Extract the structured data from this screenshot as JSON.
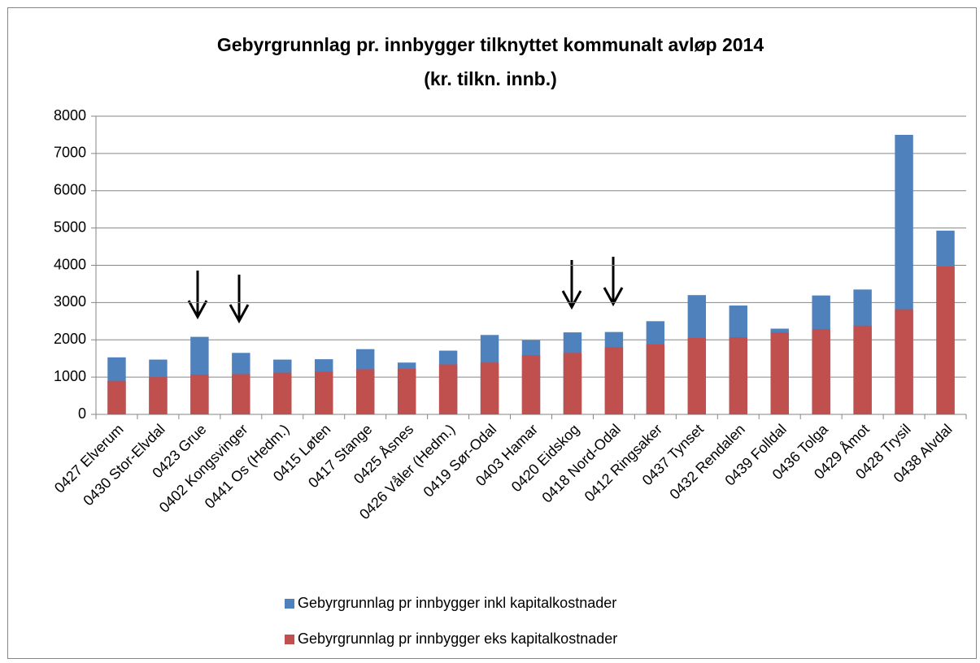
{
  "chart_data": {
    "type": "bar",
    "title": "Gebyrgrunnlag pr. innbygger tilknyttet kommunalt avløp 2014",
    "subtitle": "(kr. tilkn. innb.)",
    "categories": [
      "0427 Elverum",
      "0430 Stor-Elvdal",
      "0423 Grue",
      "0402 Kongsvinger",
      "0441 Os (Hedm.)",
      "0415 Løten",
      "0417 Stange",
      "0425 Åsnes",
      "0426 Våler (Hedm.)",
      "0419 Sør-Odal",
      "0403 Hamar",
      "0420 Eidskog",
      "0418 Nord-Odal",
      "0412 Ringsaker",
      "0437 Tynset",
      "0432 Rendalen",
      "0439 Folldal",
      "0436 Tolga",
      "0429 Åmot",
      "0428 Trysil",
      "0438 Alvdal"
    ],
    "series": [
      {
        "name": "Gebyrgrunnlag pr innbygger inkl kapitalkostnader",
        "color": "#4f81bd",
        "values": [
          1530,
          1470,
          2080,
          1650,
          1470,
          1480,
          1750,
          1390,
          1710,
          2130,
          1990,
          2200,
          2210,
          2500,
          3200,
          2920,
          2300,
          3190,
          3350,
          7500,
          4930
        ]
      },
      {
        "name": "Gebyrgrunnlag pr innbygger eks kapitalkostnader",
        "color": "#c0504d",
        "values": [
          900,
          1000,
          1070,
          1080,
          1120,
          1150,
          1210,
          1220,
          1340,
          1390,
          1590,
          1650,
          1800,
          1880,
          2050,
          2070,
          2200,
          2290,
          2380,
          2820,
          3970
        ]
      }
    ],
    "ylim": [
      0,
      8000
    ],
    "yticks": [
      0,
      1000,
      2000,
      3000,
      4000,
      5000,
      6000,
      7000,
      8000
    ],
    "grid": true
  }
}
